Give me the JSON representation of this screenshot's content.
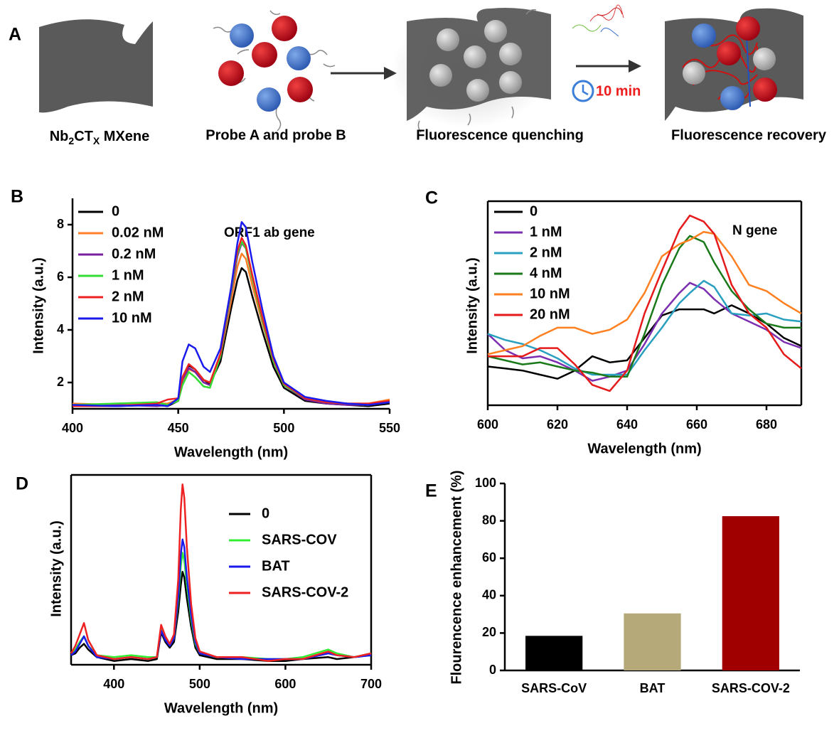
{
  "panels": [
    "A",
    "B",
    "C",
    "D",
    "E"
  ],
  "schematic": {
    "mxene_label_parts": [
      "Nb",
      "2",
      "CT",
      "X",
      " MXene"
    ],
    "probes_label": "Probe A and probe B",
    "quenching_label": "Fluorescence quenching",
    "time_label": "10 min",
    "recovery_label": "Fluorescence recovery"
  },
  "chart_data": [
    {
      "type": "line",
      "x_label": "Wavelength (nm)",
      "y_label": "Intensity (a.u.)",
      "annotation": "ORF1 ab gene",
      "xlim": [
        400,
        550
      ],
      "xticks": [
        400,
        450,
        500,
        550
      ],
      "ylim": [
        1,
        9
      ],
      "yticks": [
        2,
        4,
        6,
        8
      ],
      "x": [
        400,
        420,
        440,
        445,
        450,
        452,
        455,
        458,
        462,
        465,
        470,
        475,
        478,
        480,
        482,
        485,
        490,
        495,
        500,
        510,
        520,
        530,
        540,
        550
      ],
      "series": [
        {
          "name": "0",
          "color": "#000000",
          "values": [
            1.15,
            1.1,
            1.15,
            1.1,
            1.3,
            2.2,
            2.65,
            2.5,
            2.1,
            1.95,
            2.8,
            4.8,
            5.9,
            6.35,
            6.2,
            5.3,
            3.9,
            2.6,
            1.8,
            1.3,
            1.2,
            1.15,
            1.1,
            1.2
          ]
        },
        {
          "name": "0.02 nM",
          "color": "#ff7f27",
          "values": [
            1.2,
            1.15,
            1.2,
            1.2,
            1.35,
            2.0,
            2.5,
            2.4,
            2.1,
            2.0,
            3.0,
            5.1,
            6.4,
            6.9,
            6.7,
            5.7,
            4.2,
            2.8,
            1.9,
            1.4,
            1.25,
            1.2,
            1.2,
            1.35
          ]
        },
        {
          "name": "0.2 nM",
          "color": "#7a1fa2",
          "values": [
            1.1,
            1.15,
            1.1,
            1.15,
            1.3,
            2.1,
            2.55,
            2.4,
            2.0,
            1.9,
            3.0,
            5.4,
            6.8,
            7.3,
            7.1,
            6.0,
            4.3,
            2.8,
            1.9,
            1.35,
            1.2,
            1.15,
            1.15,
            1.25
          ]
        },
        {
          "name": "1 nM",
          "color": "#33dd33",
          "values": [
            1.15,
            1.2,
            1.25,
            1.15,
            1.3,
            1.9,
            2.4,
            2.2,
            1.85,
            1.8,
            3.0,
            5.5,
            6.9,
            7.35,
            7.1,
            6.0,
            4.3,
            2.8,
            1.9,
            1.4,
            1.25,
            1.2,
            1.15,
            1.3
          ]
        },
        {
          "name": "2 nM",
          "color": "#ee2222",
          "values": [
            1.1,
            1.1,
            1.2,
            1.35,
            1.4,
            2.2,
            2.7,
            2.5,
            2.1,
            2.0,
            3.1,
            5.6,
            7.0,
            7.5,
            7.2,
            6.1,
            4.4,
            2.9,
            1.95,
            1.4,
            1.25,
            1.2,
            1.2,
            1.3
          ]
        },
        {
          "name": "10 nM",
          "color": "#1a1aee",
          "values": [
            1.15,
            1.1,
            1.15,
            1.1,
            1.4,
            2.8,
            3.45,
            3.3,
            2.6,
            2.4,
            3.3,
            5.6,
            7.3,
            8.1,
            7.9,
            6.6,
            4.7,
            3.0,
            2.0,
            1.45,
            1.3,
            1.2,
            1.15,
            1.25
          ]
        }
      ]
    },
    {
      "type": "line",
      "x_label": "Wavelength (nm)",
      "y_label": "Intensity (a.u.)",
      "annotation": "N gene",
      "xlim": [
        600,
        690
      ],
      "xticks": [
        600,
        620,
        640,
        660,
        680
      ],
      "ylim": [
        0,
        100
      ],
      "x": [
        600,
        605,
        610,
        615,
        620,
        625,
        630,
        635,
        640,
        645,
        650,
        655,
        658,
        662,
        665,
        670,
        675,
        680,
        685,
        690
      ],
      "series": [
        {
          "name": "0",
          "color": "#000000",
          "values": [
            19,
            18,
            17,
            15,
            13,
            17,
            24,
            21,
            22,
            33,
            44,
            47,
            47,
            47,
            45,
            49,
            45,
            40,
            33,
            29
          ]
        },
        {
          "name": "1 nM",
          "color": "#7b2fb0",
          "values": [
            35,
            27,
            23,
            24,
            21,
            17,
            12,
            14,
            17,
            30,
            45,
            55,
            60,
            57,
            52,
            45,
            41,
            37,
            31,
            28
          ]
        },
        {
          "name": "2 nM",
          "color": "#2aa0c0",
          "values": [
            35,
            32,
            30,
            27,
            23,
            18,
            15,
            15,
            15,
            27,
            38,
            50,
            55,
            61,
            58,
            45,
            44,
            45,
            42,
            41
          ]
        },
        {
          "name": "4 nM",
          "color": "#1a7a1a",
          "values": [
            24,
            22,
            20,
            21,
            19,
            17,
            16,
            14,
            14,
            35,
            59,
            77,
            83,
            80,
            70,
            56,
            47,
            40,
            38,
            38
          ]
        },
        {
          "name": "10 nM",
          "color": "#ff8020",
          "values": [
            25,
            27,
            29,
            34,
            38,
            38,
            35,
            37,
            42,
            55,
            73,
            79,
            81,
            85,
            84,
            73,
            59,
            56,
            50,
            45
          ]
        },
        {
          "name": "20 nM",
          "color": "#e51a1a",
          "values": [
            24,
            24,
            24,
            28,
            28,
            20,
            10,
            7,
            17,
            45,
            66,
            86,
            93,
            90,
            84,
            59,
            45,
            38,
            25,
            18
          ]
        }
      ]
    },
    {
      "type": "line",
      "x_label": "Wavelength (nm)",
      "y_label": "Intensity (a.u.)",
      "xlim": [
        350,
        700
      ],
      "xticks": [
        400,
        500,
        600,
        700
      ],
      "ylim": [
        0,
        100
      ],
      "x": [
        350,
        355,
        360,
        365,
        370,
        380,
        400,
        420,
        440,
        450,
        455,
        460,
        465,
        470,
        475,
        478,
        480,
        482,
        485,
        490,
        495,
        500,
        520,
        550,
        580,
        600,
        620,
        650,
        660,
        680,
        700
      ],
      "series": [
        {
          "name": "0",
          "color": "#000000",
          "values": [
            5,
            6,
            9,
            11,
            8,
            4,
            2,
            3,
            2,
            3,
            17,
            12,
            9,
            12,
            28,
            42,
            49,
            46,
            35,
            20,
            9,
            5,
            3,
            3,
            2,
            2,
            3,
            4,
            3,
            4,
            5
          ]
        },
        {
          "name": "SARS-COV",
          "color": "#33ee33",
          "values": [
            6,
            8,
            12,
            15,
            10,
            5,
            4,
            5,
            4,
            4,
            19,
            14,
            10,
            14,
            34,
            52,
            59,
            55,
            42,
            24,
            11,
            6,
            4,
            4,
            3,
            3,
            4,
            8,
            6,
            4,
            6
          ]
        },
        {
          "name": "BAT",
          "color": "#1a1aee",
          "values": [
            5,
            7,
            11,
            15,
            10,
            4,
            3,
            4,
            3,
            4,
            18,
            13,
            10,
            14,
            36,
            58,
            66,
            62,
            46,
            26,
            12,
            6,
            4,
            3,
            3,
            3,
            3,
            6,
            5,
            4,
            5
          ]
        },
        {
          "name": "SARS-COV-2",
          "color": "#ee2222",
          "values": [
            6,
            10,
            16,
            22,
            13,
            5,
            3,
            4,
            3,
            4,
            21,
            15,
            11,
            16,
            45,
            82,
            95,
            88,
            62,
            32,
            14,
            7,
            4,
            4,
            2,
            3,
            3,
            7,
            5,
            4,
            6
          ]
        }
      ]
    },
    {
      "type": "bar",
      "y_label": "Flourencence enhancement (%)",
      "categories": [
        "SARS-CoV",
        "BAT",
        "SARS-COV-2"
      ],
      "values": [
        18.5,
        30.5,
        82.5
      ],
      "colors": [
        "#000000",
        "#b5a97a",
        "#a00000"
      ],
      "ylim": [
        0,
        100
      ],
      "yticks": [
        0,
        20,
        40,
        60,
        80,
        100
      ]
    }
  ]
}
